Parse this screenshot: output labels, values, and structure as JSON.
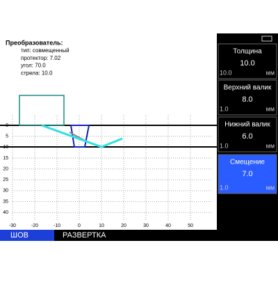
{
  "transducer": {
    "title": "Преобразователь:",
    "lines": [
      "тип: совмещенный",
      "протектор: 7.02",
      "угол: 70.0",
      "стрела: 10.0"
    ]
  },
  "plot": {
    "xticks": [
      -30,
      -20,
      -10,
      0,
      10,
      20,
      30,
      40,
      50
    ],
    "yticks": [
      0,
      5,
      10,
      15,
      20,
      25,
      30,
      35,
      40
    ]
  },
  "panels": [
    {
      "label": "Толщина",
      "value": "10.0",
      "range": "10.0",
      "unit": "мм"
    },
    {
      "label": "Верхний валик",
      "value": "8.0",
      "range": "1.0",
      "unit": "мм"
    },
    {
      "label": "Нижний валик",
      "value": "6.0",
      "range": "1.0",
      "unit": "мм"
    },
    {
      "label": "Смещение",
      "value": "7.0",
      "range": "1.0",
      "unit": "мм",
      "selected": true
    }
  ],
  "menu": [
    "ШОВ",
    "РАЗВЕРТКА"
  ]
}
